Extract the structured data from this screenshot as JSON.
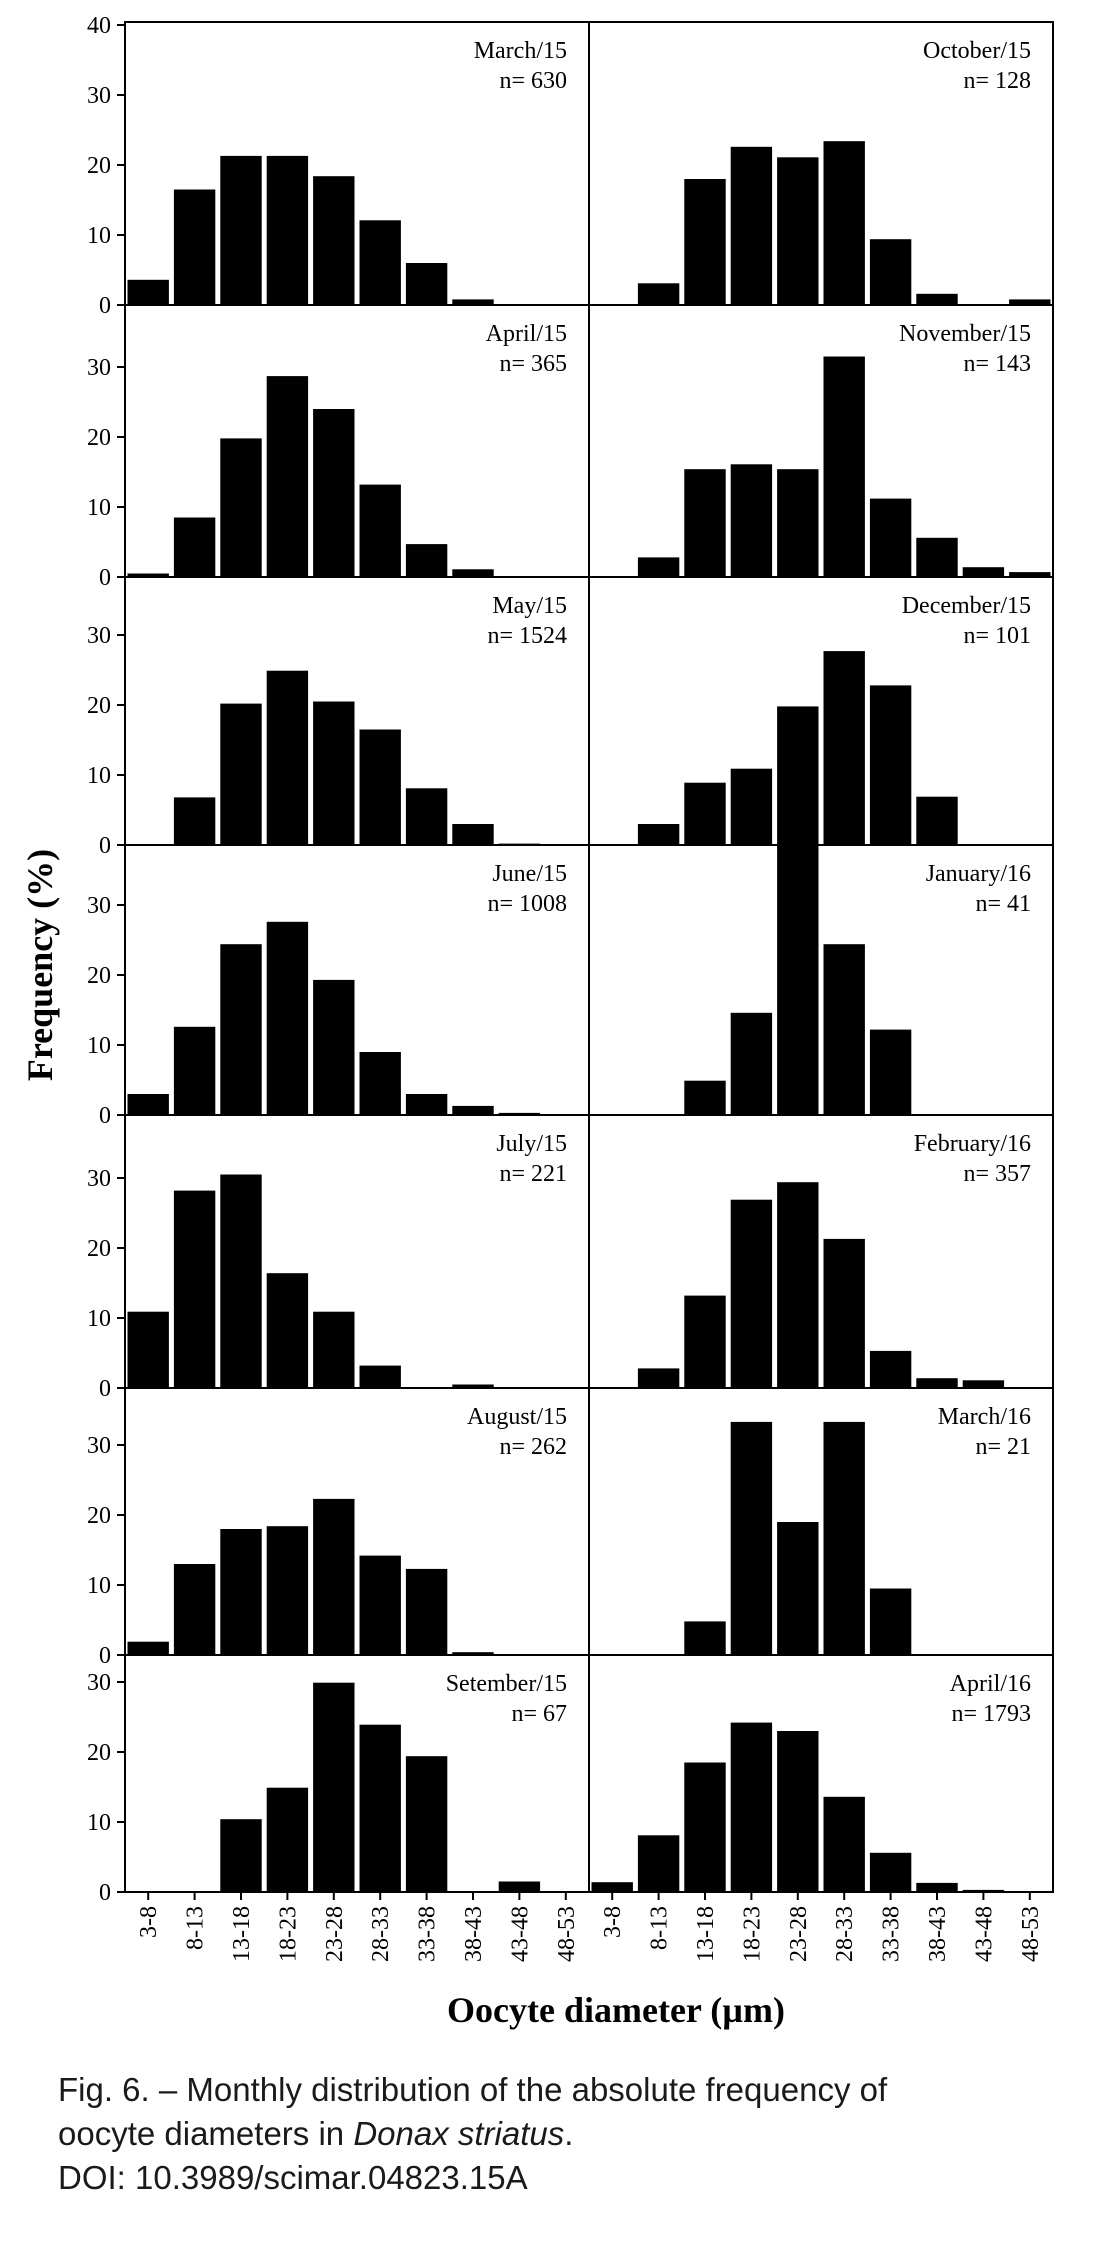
{
  "chart_data": {
    "type": "bar",
    "ylabel": "Frequency (%)",
    "xlabel": "Oocyte diameter (µm)",
    "ylim": [
      0,
      40
    ],
    "yticks": [
      "0",
      "10",
      "20",
      "30",
      "40"
    ],
    "categories": [
      "3-8",
      "8-13",
      "13-18",
      "18-23",
      "23-28",
      "28-33",
      "33-38",
      "38-43",
      "43-48",
      "48-53"
    ],
    "panels": [
      {
        "column": "left",
        "row": 0,
        "month": "March/15",
        "n": "n= 630",
        "values": [
          3.6,
          16.5,
          21.3,
          21.3,
          18.4,
          12.1,
          6.0,
          0.8,
          0,
          0
        ]
      },
      {
        "column": "left",
        "row": 1,
        "month": "April/15",
        "n": "n= 365",
        "values": [
          0.5,
          8.5,
          19.8,
          28.7,
          24.0,
          13.2,
          4.7,
          1.1,
          0,
          0
        ]
      },
      {
        "column": "left",
        "row": 2,
        "month": "May/15",
        "n": "n= 1524",
        "values": [
          0,
          6.8,
          20.2,
          24.9,
          20.5,
          16.5,
          8.1,
          3.0,
          0.2,
          0
        ]
      },
      {
        "column": "left",
        "row": 3,
        "month": "June/15",
        "n": "n= 1008",
        "values": [
          3.0,
          12.6,
          24.4,
          27.6,
          19.3,
          9.0,
          3.0,
          1.3,
          0.3,
          0
        ]
      },
      {
        "column": "left",
        "row": 4,
        "month": "July/15",
        "n": "n= 221",
        "values": [
          10.9,
          28.2,
          30.5,
          16.4,
          10.9,
          3.2,
          0,
          0.5,
          0,
          0
        ]
      },
      {
        "column": "left",
        "row": 5,
        "month": "August/15",
        "n": "n= 262",
        "values": [
          1.9,
          13.0,
          18.0,
          18.4,
          22.3,
          14.2,
          12.3,
          0.4,
          0,
          0
        ]
      },
      {
        "column": "left",
        "row": 6,
        "month": "Setember/15",
        "n": "n= 67",
        "values": [
          0,
          0,
          10.4,
          14.9,
          29.9,
          23.9,
          19.4,
          0,
          1.5,
          0
        ]
      },
      {
        "column": "right",
        "row": 0,
        "month": "October/15",
        "n": "n= 128",
        "values": [
          0,
          3.1,
          18.0,
          22.6,
          21.1,
          23.4,
          9.4,
          1.6,
          0,
          0.8
        ]
      },
      {
        "column": "right",
        "row": 1,
        "month": "November/15",
        "n": "n= 143",
        "values": [
          0,
          2.8,
          15.4,
          16.1,
          15.4,
          31.5,
          11.2,
          5.6,
          1.4,
          0.7
        ]
      },
      {
        "column": "right",
        "row": 2,
        "month": "December/15",
        "n": "n= 101",
        "values": [
          0,
          3.0,
          8.9,
          10.9,
          19.8,
          27.7,
          22.8,
          6.9,
          0,
          0
        ]
      },
      {
        "column": "right",
        "row": 3,
        "month": "January/16",
        "n": "n= 41",
        "values": [
          0,
          0,
          4.9,
          14.6,
          39.0,
          24.4,
          12.2,
          0,
          0,
          0
        ]
      },
      {
        "column": "right",
        "row": 4,
        "month": "February/16",
        "n": "n= 357",
        "values": [
          0,
          2.8,
          13.2,
          26.9,
          29.4,
          21.3,
          5.3,
          1.4,
          1.1,
          0
        ]
      },
      {
        "column": "right",
        "row": 5,
        "month": "March/16",
        "n": "n= 21",
        "values": [
          0,
          0,
          4.8,
          33.3,
          19.0,
          33.3,
          9.5,
          0,
          0,
          0
        ]
      },
      {
        "column": "right",
        "row": 6,
        "month": "April/16",
        "n": "n= 1793",
        "values": [
          1.4,
          8.1,
          18.5,
          24.2,
          23.0,
          13.6,
          5.6,
          1.3,
          0.3,
          0.1
        ]
      }
    ]
  },
  "caption": {
    "line1": "Fig. 6. – Monthly distribution of the absolute frequency of",
    "line2_prefix": "oocyte diameters in ",
    "line2_species": "Donax striatus",
    "line2_suffix": ".",
    "line3": "DOI: 10.3989/scimar.04823.15A"
  }
}
